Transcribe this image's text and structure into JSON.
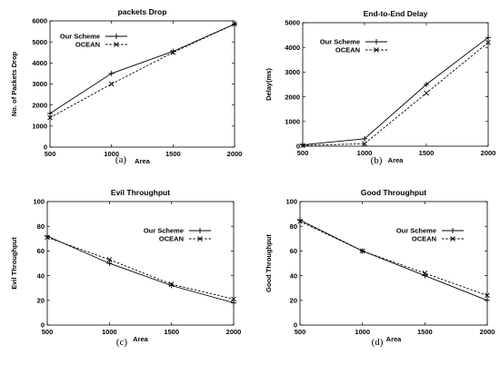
{
  "chart_data": [
    {
      "type": "line",
      "title": "packets Drop",
      "xlabel": "Area",
      "ylabel": "No. of Packets Drop",
      "caption": "(a)",
      "xlim": [
        500,
        2000
      ],
      "ylim": [
        0,
        6000
      ],
      "xticks": [
        "500",
        "1000",
        "1500",
        "2000"
      ],
      "yticks": [
        "0",
        "1000",
        "2000",
        "3000",
        "4000",
        "5000",
        "6000"
      ],
      "legend": "top-left",
      "grid": false,
      "series": [
        {
          "name": "Our Scheme",
          "marker": "plus",
          "dash": false,
          "x": [
            500,
            1000,
            1500,
            2000
          ],
          "y": [
            1600,
            3500,
            4550,
            5850
          ]
        },
        {
          "name": "OCEAN",
          "marker": "cross",
          "dash": true,
          "x": [
            500,
            1000,
            1500,
            2000
          ],
          "y": [
            1400,
            3000,
            4500,
            5850
          ]
        }
      ]
    },
    {
      "type": "line",
      "title": "End-to-End Delay",
      "xlabel": "Area",
      "ylabel": "Delay(ms)",
      "caption": "(b)",
      "xlim": [
        500,
        2000
      ],
      "ylim": [
        0,
        5000
      ],
      "xticks": [
        "500",
        "1000",
        "1500",
        "2000"
      ],
      "yticks": [
        "0",
        "1000",
        "2000",
        "3000",
        "4000",
        "5000"
      ],
      "legend": "top-left",
      "grid": false,
      "series": [
        {
          "name": "Our Scheme",
          "marker": "plus",
          "dash": false,
          "x": [
            500,
            1000,
            1500,
            2000
          ],
          "y": [
            50,
            300,
            2500,
            4400
          ]
        },
        {
          "name": "OCEAN",
          "marker": "cross",
          "dash": true,
          "x": [
            500,
            1000,
            1500,
            2000
          ],
          "y": [
            30,
            100,
            2150,
            4200
          ]
        }
      ]
    },
    {
      "type": "line",
      "title": "Evil Throughput",
      "xlabel": "Area",
      "ylabel": "Evil Throughput",
      "caption": "(c)",
      "xlim": [
        500,
        2000
      ],
      "ylim": [
        0,
        100
      ],
      "xticks": [
        "500",
        "1000",
        "1500",
        "2000"
      ],
      "yticks": [
        "0",
        "20",
        "40",
        "60",
        "80",
        "100"
      ],
      "legend": "top-right",
      "grid": false,
      "series": [
        {
          "name": "Our Scheme",
          "marker": "plus",
          "dash": false,
          "x": [
            500,
            1000,
            1500,
            2000
          ],
          "y": [
            72,
            50,
            32,
            18
          ]
        },
        {
          "name": "OCEAN",
          "marker": "cross",
          "dash": true,
          "x": [
            500,
            1000,
            1500,
            2000
          ],
          "y": [
            71,
            53,
            33,
            21
          ]
        }
      ]
    },
    {
      "type": "line",
      "title": "Good Throughput",
      "xlabel": "Area",
      "ylabel": "Good Throughput",
      "caption": "(d)",
      "xlim": [
        500,
        2000
      ],
      "ylim": [
        0,
        100
      ],
      "xticks": [
        "500",
        "1000",
        "1500",
        "2000"
      ],
      "yticks": [
        "0",
        "20",
        "40",
        "60",
        "80",
        "100"
      ],
      "legend": "top-right",
      "grid": false,
      "series": [
        {
          "name": "Our Scheme",
          "marker": "plus",
          "dash": false,
          "x": [
            500,
            1000,
            1500,
            2000
          ],
          "y": [
            85,
            60,
            40,
            20
          ]
        },
        {
          "name": "OCEAN",
          "marker": "cross",
          "dash": true,
          "x": [
            500,
            1000,
            1500,
            2000
          ],
          "y": [
            84,
            60,
            42,
            24
          ]
        }
      ]
    }
  ]
}
